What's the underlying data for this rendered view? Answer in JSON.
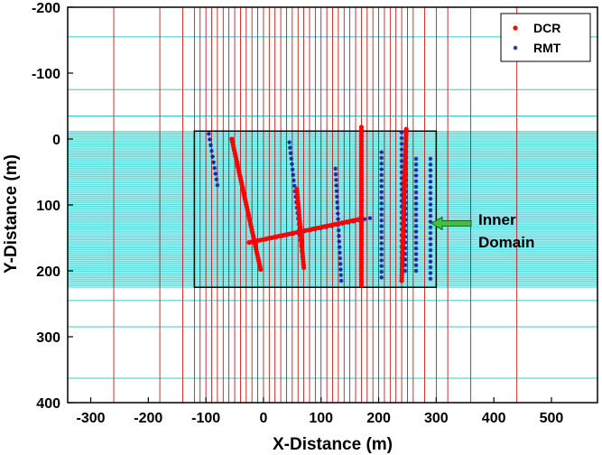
{
  "chart_data": {
    "type": "scatter",
    "xlabel": "X-Distance (m)",
    "ylabel": "Y-Distance (m)",
    "xlim": [
      -340,
      580
    ],
    "ylim": [
      400,
      -200
    ],
    "y_inverted": true,
    "x_ticks": [
      -300,
      -200,
      -100,
      0,
      100,
      200,
      300,
      400,
      500
    ],
    "x_tick_labels": [
      "-300",
      "-200",
      "-100",
      "0",
      "100",
      "200",
      "300",
      "400",
      "500"
    ],
    "y_ticks": [
      -200,
      -100,
      0,
      100,
      200,
      300,
      400
    ],
    "y_tick_labels": [
      "-200",
      "-100",
      "0",
      "100",
      "200",
      "300",
      "400"
    ],
    "grid": false,
    "legend_position": "top-right",
    "legend": [
      {
        "label": "DCR",
        "marker": "dot",
        "color": "#ff0000"
      },
      {
        "label": "RMT",
        "marker": "asterisk",
        "color": "#1a1aa8"
      }
    ],
    "annotation": {
      "line1": "Inner",
      "line2": "Domain",
      "arrow_color": "#40c040"
    },
    "inner_domain": {
      "x": [
        -120,
        300
      ],
      "y": [
        -12,
        225
      ]
    },
    "mesh": {
      "vertical_line_color": "#c00000",
      "horizontal_line_color": "#33cccc",
      "fill_color": "#a0f0f0",
      "vertical_lines_x": [
        -260,
        -180,
        -140,
        -120,
        -110,
        -100,
        -90,
        -80,
        -70,
        -60,
        -50,
        -40,
        -30,
        -20,
        -10,
        0,
        10,
        20,
        30,
        40,
        50,
        60,
        70,
        80,
        90,
        100,
        110,
        120,
        130,
        140,
        150,
        160,
        170,
        180,
        190,
        200,
        210,
        220,
        230,
        240,
        250,
        260,
        280,
        300,
        320,
        360,
        440
      ],
      "horizontal_lines_y": [
        -155,
        -75,
        -35,
        245,
        285,
        363
      ],
      "dense_band_y": [
        -12,
        225
      ],
      "dense_spacing": 3
    },
    "series": [
      {
        "name": "DCR",
        "marker": "dot",
        "color": "#ff0000",
        "lines": [
          {
            "from": [
              -55,
              0
            ],
            "to": [
              -5,
              198
            ]
          },
          {
            "from": [
              58,
              76
            ],
            "to": [
              70,
              195
            ]
          },
          {
            "from": [
              -25,
              157
            ],
            "to": [
              170,
              121
            ]
          },
          {
            "from": [
              170,
              -18
            ],
            "to": [
              170,
              222
            ]
          },
          {
            "from": [
              248,
              -15
            ],
            "to": [
              240,
              215
            ]
          }
        ]
      },
      {
        "name": "RMT",
        "marker": "asterisk",
        "color": "#1a1aa8",
        "lines": [
          {
            "from": [
              -95,
              -8
            ],
            "to": [
              -80,
              70
            ]
          },
          {
            "from": [
              -55,
              0
            ],
            "to": [
              -5,
              198
            ]
          },
          {
            "from": [
              45,
              5
            ],
            "to": [
              70,
              195
            ]
          },
          {
            "from": [
              -25,
              157
            ],
            "to": [
              185,
              120
            ]
          },
          {
            "from": [
              125,
              45
            ],
            "to": [
              135,
              215
            ]
          },
          {
            "from": [
              170,
              -18
            ],
            "to": [
              170,
              222
            ]
          },
          {
            "from": [
              205,
              20
            ],
            "to": [
              205,
              210
            ]
          },
          {
            "from": [
              240,
              -10
            ],
            "to": [
              240,
              215
            ]
          },
          {
            "from": [
              248,
              -15
            ],
            "to": [
              246,
              200
            ]
          },
          {
            "from": [
              265,
              30
            ],
            "to": [
              265,
              200
            ]
          },
          {
            "from": [
              290,
              30
            ],
            "to": [
              290,
              212
            ]
          }
        ]
      }
    ]
  }
}
